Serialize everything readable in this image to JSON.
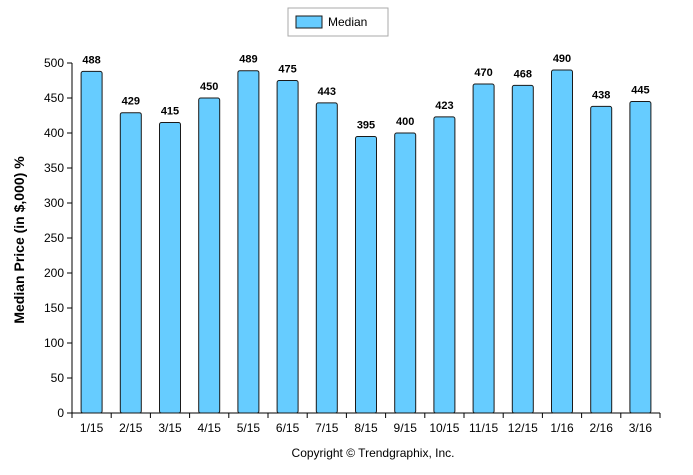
{
  "chart_data": {
    "type": "bar",
    "categories": [
      "1/15",
      "2/15",
      "3/15",
      "4/15",
      "5/15",
      "6/15",
      "7/15",
      "8/15",
      "9/15",
      "10/15",
      "11/15",
      "12/15",
      "1/16",
      "2/16",
      "3/16"
    ],
    "series": [
      {
        "name": "Median",
        "values": [
          488,
          429,
          415,
          450,
          489,
          475,
          443,
          395,
          400,
          423,
          470,
          468,
          490,
          438,
          445
        ]
      }
    ],
    "ylabel": "Median Price (in $,000) %",
    "xlabel": "",
    "ylim": [
      0,
      500
    ],
    "yticks": [
      0,
      50,
      100,
      150,
      200,
      250,
      300,
      350,
      400,
      450,
      500
    ],
    "grid": false,
    "legend_position": "top-center",
    "data_labels": true,
    "bar_color": "#66ccff",
    "bar_edge_color": "#1a1a1a"
  },
  "footer": {
    "copyright": "Copyright © Trendgraphix, Inc."
  }
}
